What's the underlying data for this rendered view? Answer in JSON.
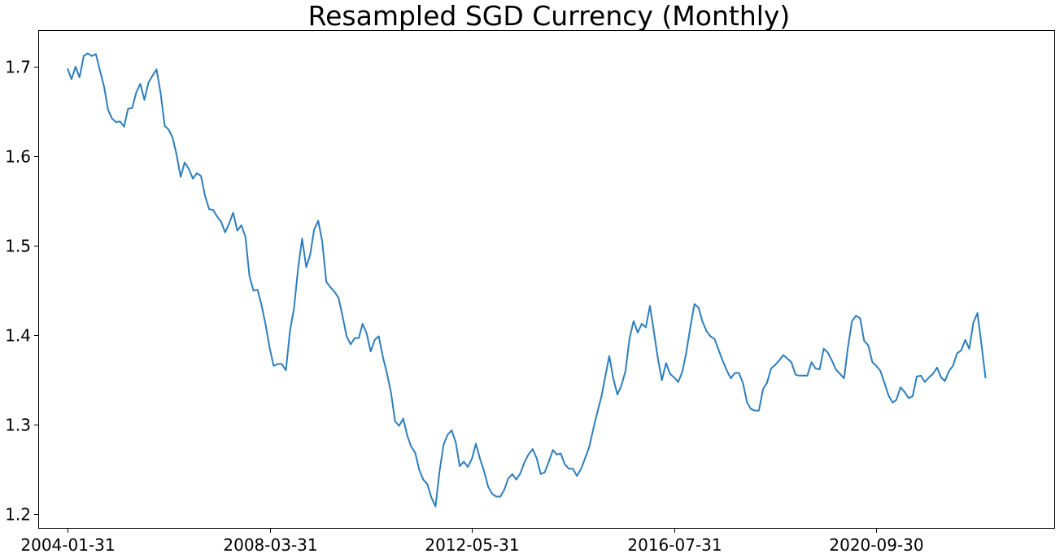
{
  "chart_data": {
    "type": "line",
    "title": "Resampled SGD Currency (Monthly)",
    "xlabel": "",
    "ylabel": "",
    "grid": false,
    "x_tick_labels": [
      "2004-01-31",
      "2008-03-31",
      "2012-05-31",
      "2016-07-31",
      "2020-09-30"
    ],
    "y_ticks": [
      1.2,
      1.3,
      1.4,
      1.5,
      1.6,
      1.7
    ],
    "y_tick_labels": [
      "1.2",
      "1.3",
      "1.4",
      "1.5",
      "1.6",
      "1.7"
    ],
    "xlim": [
      "2003-06-30",
      "2024-05-31"
    ],
    "ylim": [
      1.185,
      1.74
    ],
    "colors": {
      "line": "#2e7ebc"
    },
    "series": [
      {
        "x_start": "2004-01-31",
        "frequency": "monthly",
        "values": [
          1.698,
          1.686,
          1.7,
          1.688,
          1.712,
          1.715,
          1.712,
          1.714,
          1.696,
          1.678,
          1.652,
          1.642,
          1.638,
          1.639,
          1.633,
          1.653,
          1.654,
          1.671,
          1.681,
          1.663,
          1.682,
          1.69,
          1.697,
          1.671,
          1.634,
          1.63,
          1.621,
          1.602,
          1.577,
          1.593,
          1.586,
          1.575,
          1.581,
          1.578,
          1.556,
          1.541,
          1.54,
          1.533,
          1.527,
          1.515,
          1.525,
          1.537,
          1.517,
          1.523,
          1.51,
          1.466,
          1.45,
          1.451,
          1.433,
          1.412,
          1.386,
          1.366,
          1.368,
          1.368,
          1.361,
          1.405,
          1.43,
          1.475,
          1.508,
          1.476,
          1.491,
          1.518,
          1.528,
          1.505,
          1.46,
          1.454,
          1.449,
          1.442,
          1.422,
          1.399,
          1.39,
          1.397,
          1.397,
          1.413,
          1.402,
          1.382,
          1.395,
          1.399,
          1.376,
          1.357,
          1.336,
          1.304,
          1.299,
          1.307,
          1.288,
          1.276,
          1.269,
          1.25,
          1.239,
          1.234,
          1.219,
          1.209,
          1.248,
          1.278,
          1.289,
          1.294,
          1.28,
          1.254,
          1.259,
          1.253,
          1.262,
          1.279,
          1.262,
          1.248,
          1.231,
          1.223,
          1.22,
          1.22,
          1.228,
          1.24,
          1.245,
          1.239,
          1.246,
          1.258,
          1.267,
          1.273,
          1.263,
          1.245,
          1.247,
          1.259,
          1.272,
          1.267,
          1.268,
          1.256,
          1.251,
          1.251,
          1.243,
          1.251,
          1.263,
          1.275,
          1.295,
          1.314,
          1.332,
          1.353,
          1.377,
          1.352,
          1.334,
          1.344,
          1.36,
          1.397,
          1.416,
          1.403,
          1.413,
          1.409,
          1.433,
          1.405,
          1.374,
          1.35,
          1.369,
          1.357,
          1.353,
          1.348,
          1.359,
          1.381,
          1.409,
          1.435,
          1.431,
          1.416,
          1.405,
          1.399,
          1.396,
          1.384,
          1.372,
          1.361,
          1.352,
          1.358,
          1.358,
          1.347,
          1.325,
          1.318,
          1.316,
          1.316,
          1.34,
          1.347,
          1.363,
          1.367,
          1.372,
          1.378,
          1.374,
          1.37,
          1.356,
          1.355,
          1.355,
          1.355,
          1.37,
          1.363,
          1.362,
          1.385,
          1.381,
          1.372,
          1.362,
          1.357,
          1.352,
          1.386,
          1.416,
          1.422,
          1.419,
          1.394,
          1.389,
          1.37,
          1.366,
          1.36,
          1.347,
          1.333,
          1.325,
          1.328,
          1.342,
          1.337,
          1.33,
          1.332,
          1.354,
          1.355,
          1.348,
          1.353,
          1.357,
          1.364,
          1.353,
          1.349,
          1.36,
          1.366,
          1.38,
          1.383,
          1.395,
          1.385,
          1.414,
          1.425,
          1.39,
          1.352
        ]
      }
    ]
  }
}
